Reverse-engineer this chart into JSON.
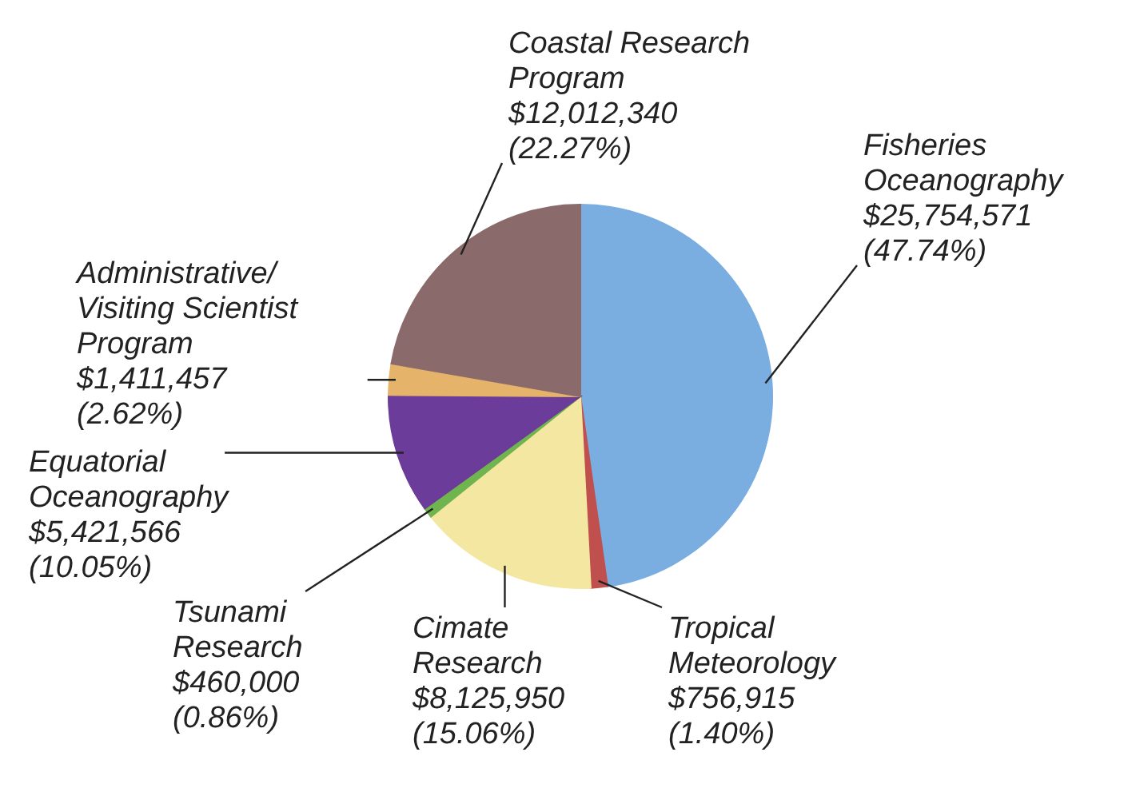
{
  "chart_data": {
    "type": "pie",
    "categories": [
      "Fisheries\nOceanography",
      "Tropical\nMeteorology",
      "Cimate\nResearch",
      "Tsunami\nResearch",
      "Equatorial\nOceanography",
      "Administrative/\nVisiting Scientist\nProgram",
      "Coastal Research\nProgram"
    ],
    "values": [
      25754571,
      756915,
      8125950,
      460000,
      5421566,
      1411457,
      12012340
    ],
    "value_labels": [
      "$25,754,571\n(47.74%)",
      "$756,915\n(1.40%)",
      "$8,125,950\n(15.06%)",
      "$460,000\n(0.86%)",
      "$5,421,566\n(10.05%)",
      "$1,411,457\n(2.62%)",
      "$12,012,340\n(22.27%)"
    ],
    "colors": [
      "#7aade0",
      "#c0504d",
      "#f3e7a2",
      "#70b450",
      "#6b3c99",
      "#e6b36a",
      "#8b6a6b"
    ],
    "legend": false
  }
}
